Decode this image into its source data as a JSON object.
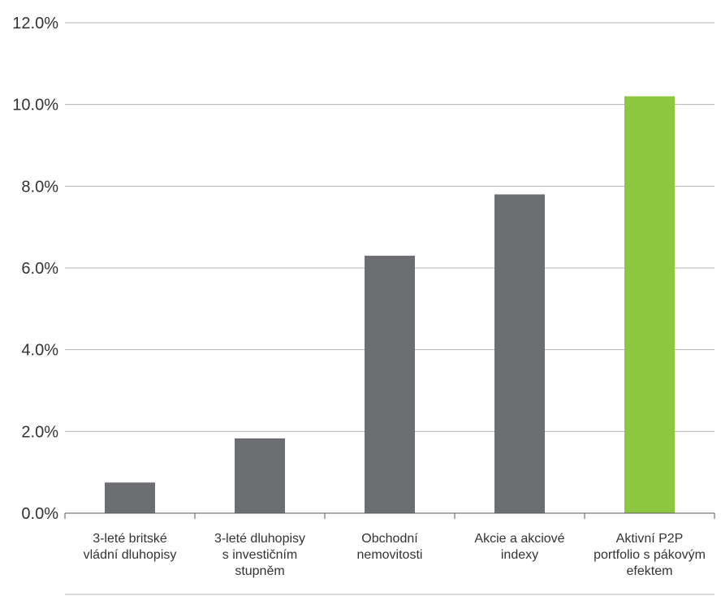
{
  "chart_data": {
    "type": "bar",
    "categories": [
      [
        "3-leté britské",
        "vládní dluhopisy"
      ],
      [
        "3-leté dluhopisy",
        "s investičním",
        "stupněm"
      ],
      [
        "Obchodní",
        "nemovitosti"
      ],
      [
        "Akcie a akciové",
        "indexy"
      ],
      [
        "Aktivní P2P",
        "portfolio s pákovým",
        "efektem"
      ]
    ],
    "values": [
      0.75,
      1.83,
      6.3,
      7.8,
      10.2
    ],
    "bar_colors": [
      "#6d6e71",
      "#6d6e71",
      "#6d6e71",
      "#6d6e71",
      "#8dc63f"
    ],
    "y_ticks": [
      "0.0%",
      "2.0%",
      "4.0%",
      "6.0%",
      "8.0%",
      "10.0%",
      "12.0%"
    ],
    "ylim": [
      0,
      12
    ],
    "grid": true,
    "title": "",
    "xlabel": "",
    "ylabel": ""
  }
}
